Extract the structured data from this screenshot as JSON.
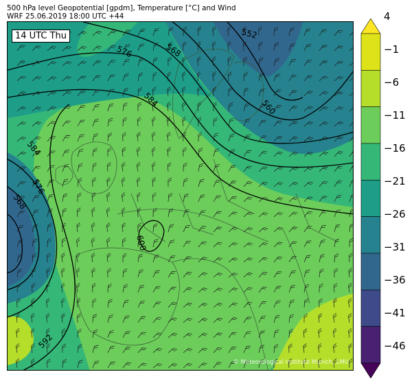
{
  "header": {
    "title_line1": "500 hPa level Geopotential [gpdm], Temperature [°C] and Wind",
    "title_line2": "WRF 25.06.2019 18:00 UTC +44"
  },
  "map": {
    "time_label": "14 UTC Thu",
    "credit": "© Meteorological Institute Munich, LMU",
    "contour_labels": [
      "576",
      "568",
      "584",
      "552",
      "560",
      "584",
      "576",
      "568",
      "600",
      "592"
    ]
  },
  "colorbar": {
    "ticks": [
      "4",
      "−1",
      "−6",
      "−11",
      "−16",
      "−21",
      "−26",
      "−31",
      "−36",
      "−41",
      "−46"
    ],
    "colors": [
      "#450457",
      "#482172",
      "#3e4a89",
      "#31678d",
      "#26828e",
      "#1e9d89",
      "#35b778",
      "#6ccd5a",
      "#b5de2b",
      "#dde318",
      "#fde725"
    ]
  }
}
